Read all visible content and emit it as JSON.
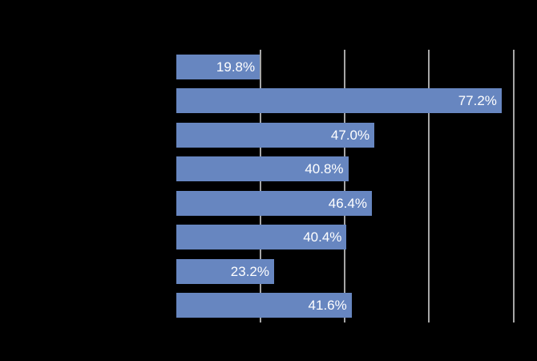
{
  "chart_data": {
    "type": "bar",
    "orientation": "horizontal",
    "title": "",
    "xlabel": "",
    "ylabel": "",
    "values": [
      19.8,
      77.2,
      47.0,
      40.8,
      46.4,
      40.4,
      23.2,
      41.6
    ],
    "labels": [
      "19.8%",
      "77.2%",
      "47.0%",
      "40.8%",
      "46.4%",
      "40.4%",
      "23.2%",
      "41.6%"
    ],
    "xlim": [
      0,
      85.2
    ],
    "gridlines": [
      20,
      40,
      60,
      80
    ],
    "grid": true,
    "legend": false,
    "colors": {
      "background": "#000000",
      "bar": "#6786C0",
      "gridline": "#A6A6A6",
      "value_label": "#FFFFFF"
    }
  }
}
